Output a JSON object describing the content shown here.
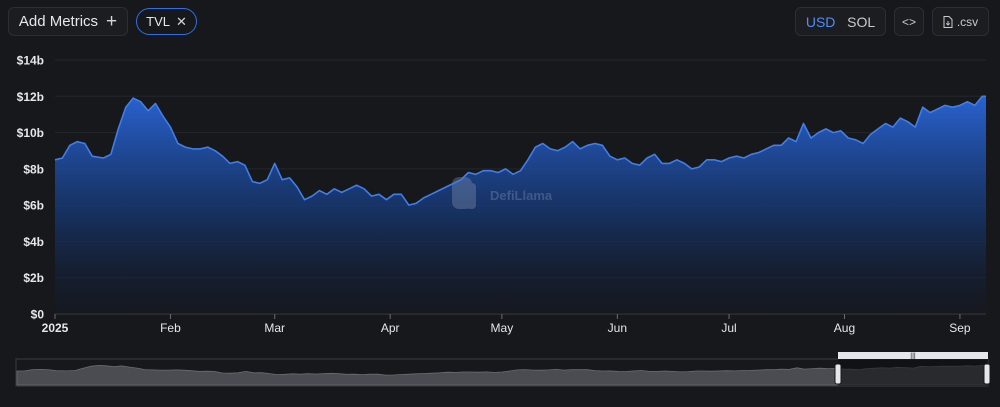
{
  "toolbar": {
    "add_metrics_label": "Add Metrics",
    "add_icon": "+",
    "metric_chip_label": "TVL",
    "chip_close_icon": "✕",
    "currency_options": [
      "USD",
      "SOL"
    ],
    "currency_selected": "USD",
    "embed_icon": "<>",
    "csv_label": ".csv",
    "csv_icon": "file-download-icon"
  },
  "watermark": "DefiLlama",
  "colors": {
    "background": "#17181b",
    "line": "#3d7ef0",
    "area_top": "#2a66d9",
    "accent": "#2f6fe4",
    "text": "#e6e7ea"
  },
  "chart_data": {
    "type": "area",
    "y_ticks": [
      "$0",
      "$2b",
      "$4b",
      "$6b",
      "$8b",
      "$10b",
      "$12b",
      "$14b"
    ],
    "ylim": [
      0,
      14
    ],
    "y_unit": "billion USD",
    "x_ticks": [
      {
        "label": "2025",
        "date": "2025-01-01",
        "bold": true
      },
      {
        "label": "Feb",
        "date": "2025-02-01"
      },
      {
        "label": "Mar",
        "date": "2025-03-01"
      },
      {
        "label": "Apr",
        "date": "2025-04-01"
      },
      {
        "label": "May",
        "date": "2025-05-01"
      },
      {
        "label": "Jun",
        "date": "2025-06-01"
      },
      {
        "label": "Jul",
        "date": "2025-07-01"
      },
      {
        "label": "Aug",
        "date": "2025-08-01"
      },
      {
        "label": "Sep",
        "date": "2025-09-01"
      }
    ],
    "xlim": [
      "2025-01-01",
      "2025-09-08"
    ],
    "grid": true,
    "series": [
      {
        "values": [
          [
            "2025-01-01",
            8.5
          ],
          [
            "2025-01-03",
            8.6
          ],
          [
            "2025-01-05",
            9.3
          ],
          [
            "2025-01-07",
            9.5
          ],
          [
            "2025-01-09",
            9.4
          ],
          [
            "2025-01-11",
            8.7
          ],
          [
            "2025-01-14",
            8.6
          ],
          [
            "2025-01-16",
            8.8
          ],
          [
            "2025-01-18",
            10.2
          ],
          [
            "2025-01-20",
            11.4
          ],
          [
            "2025-01-22",
            11.9
          ],
          [
            "2025-01-24",
            11.7
          ],
          [
            "2025-01-26",
            11.2
          ],
          [
            "2025-01-28",
            11.6
          ],
          [
            "2025-01-30",
            10.9
          ],
          [
            "2025-02-01",
            10.3
          ],
          [
            "2025-02-03",
            9.4
          ],
          [
            "2025-02-05",
            9.2
          ],
          [
            "2025-02-07",
            9.1
          ],
          [
            "2025-02-09",
            9.1
          ],
          [
            "2025-02-11",
            9.2
          ],
          [
            "2025-02-13",
            9.0
          ],
          [
            "2025-02-15",
            8.7
          ],
          [
            "2025-02-17",
            8.3
          ],
          [
            "2025-02-19",
            8.4
          ],
          [
            "2025-02-21",
            8.2
          ],
          [
            "2025-02-23",
            7.3
          ],
          [
            "2025-02-25",
            7.2
          ],
          [
            "2025-02-27",
            7.4
          ],
          [
            "2025-03-01",
            8.3
          ],
          [
            "2025-03-03",
            7.4
          ],
          [
            "2025-03-05",
            7.5
          ],
          [
            "2025-03-07",
            7.0
          ],
          [
            "2025-03-09",
            6.3
          ],
          [
            "2025-03-11",
            6.5
          ],
          [
            "2025-03-13",
            6.8
          ],
          [
            "2025-03-15",
            6.6
          ],
          [
            "2025-03-17",
            6.9
          ],
          [
            "2025-03-19",
            6.7
          ],
          [
            "2025-03-21",
            6.9
          ],
          [
            "2025-03-23",
            7.1
          ],
          [
            "2025-03-25",
            6.9
          ],
          [
            "2025-03-27",
            6.5
          ],
          [
            "2025-03-29",
            6.6
          ],
          [
            "2025-03-31",
            6.3
          ],
          [
            "2025-04-02",
            6.6
          ],
          [
            "2025-04-04",
            6.6
          ],
          [
            "2025-04-06",
            6.0
          ],
          [
            "2025-04-08",
            6.1
          ],
          [
            "2025-04-10",
            6.4
          ],
          [
            "2025-04-12",
            6.6
          ],
          [
            "2025-04-14",
            6.8
          ],
          [
            "2025-04-16",
            7.0
          ],
          [
            "2025-04-18",
            7.2
          ],
          [
            "2025-04-20",
            7.4
          ],
          [
            "2025-04-22",
            7.8
          ],
          [
            "2025-04-24",
            7.7
          ],
          [
            "2025-04-26",
            7.9
          ],
          [
            "2025-04-28",
            7.9
          ],
          [
            "2025-04-30",
            7.8
          ],
          [
            "2025-05-02",
            8.0
          ],
          [
            "2025-05-04",
            7.7
          ],
          [
            "2025-05-06",
            7.9
          ],
          [
            "2025-05-08",
            8.5
          ],
          [
            "2025-05-10",
            9.2
          ],
          [
            "2025-05-12",
            9.4
          ],
          [
            "2025-05-14",
            9.1
          ],
          [
            "2025-05-16",
            9.0
          ],
          [
            "2025-05-18",
            9.2
          ],
          [
            "2025-05-20",
            9.5
          ],
          [
            "2025-05-22",
            9.1
          ],
          [
            "2025-05-24",
            9.3
          ],
          [
            "2025-05-26",
            9.4
          ],
          [
            "2025-05-28",
            9.3
          ],
          [
            "2025-05-30",
            8.7
          ],
          [
            "2025-06-01",
            8.5
          ],
          [
            "2025-06-03",
            8.6
          ],
          [
            "2025-06-05",
            8.3
          ],
          [
            "2025-06-07",
            8.2
          ],
          [
            "2025-06-09",
            8.6
          ],
          [
            "2025-06-11",
            8.8
          ],
          [
            "2025-06-13",
            8.3
          ],
          [
            "2025-06-15",
            8.3
          ],
          [
            "2025-06-17",
            8.5
          ],
          [
            "2025-06-19",
            8.3
          ],
          [
            "2025-06-21",
            8.0
          ],
          [
            "2025-06-23",
            8.1
          ],
          [
            "2025-06-25",
            8.5
          ],
          [
            "2025-06-27",
            8.5
          ],
          [
            "2025-06-29",
            8.4
          ],
          [
            "2025-07-01",
            8.6
          ],
          [
            "2025-07-03",
            8.7
          ],
          [
            "2025-07-05",
            8.6
          ],
          [
            "2025-07-07",
            8.8
          ],
          [
            "2025-07-09",
            8.9
          ],
          [
            "2025-07-11",
            9.1
          ],
          [
            "2025-07-13",
            9.3
          ],
          [
            "2025-07-15",
            9.3
          ],
          [
            "2025-07-17",
            9.7
          ],
          [
            "2025-07-19",
            9.5
          ],
          [
            "2025-07-21",
            10.5
          ],
          [
            "2025-07-23",
            9.7
          ],
          [
            "2025-07-25",
            10.0
          ],
          [
            "2025-07-27",
            10.2
          ],
          [
            "2025-07-29",
            10.0
          ],
          [
            "2025-07-31",
            10.1
          ],
          [
            "2025-08-02",
            9.7
          ],
          [
            "2025-08-04",
            9.6
          ],
          [
            "2025-08-06",
            9.4
          ],
          [
            "2025-08-08",
            9.9
          ],
          [
            "2025-08-10",
            10.2
          ],
          [
            "2025-08-12",
            10.5
          ],
          [
            "2025-08-14",
            10.3
          ],
          [
            "2025-08-16",
            10.8
          ],
          [
            "2025-08-18",
            10.6
          ],
          [
            "2025-08-20",
            10.3
          ],
          [
            "2025-08-22",
            11.4
          ],
          [
            "2025-08-24",
            11.1
          ],
          [
            "2025-08-26",
            11.3
          ],
          [
            "2025-08-28",
            11.5
          ],
          [
            "2025-08-30",
            11.4
          ],
          [
            "2025-09-01",
            11.5
          ],
          [
            "2025-09-03",
            11.7
          ],
          [
            "2025-09-05",
            11.5
          ],
          [
            "2025-09-07",
            12.0
          ],
          [
            "2025-09-08",
            12.0
          ]
        ]
      }
    ]
  }
}
